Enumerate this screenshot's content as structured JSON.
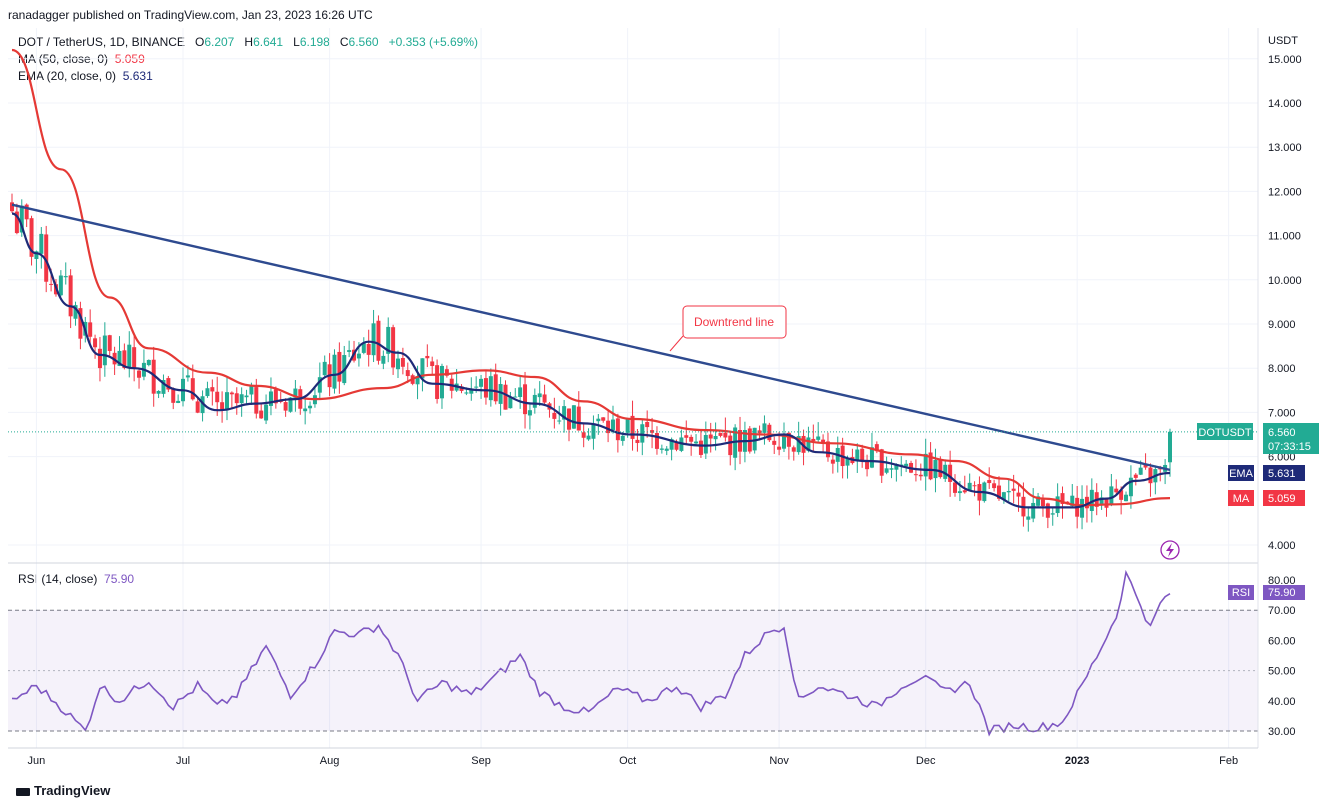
{
  "publisher": "ranadagger published on TradingView.com, Jan 23, 2023 16:26 UTC",
  "header": {
    "symbol": "DOT / TetherUS, 1D, BINANCE",
    "o_label": "O",
    "o": "6.207",
    "h_label": "H",
    "h": "6.641",
    "l_label": "L",
    "l": "6.198",
    "c_label": "C",
    "c": "6.560",
    "change": "+0.353 (+5.69%)",
    "ma_label": "MA (50, close, 0)",
    "ma_value": "5.059",
    "ema_label": "EMA (20, close, 0)",
    "ema_value": "5.631"
  },
  "rsi_header": {
    "label": "RSI (14, close)",
    "value": "75.90"
  },
  "badges": {
    "price_name": "DOTUSDT",
    "price": "6.560",
    "countdown": "07:33:15",
    "ema_name": "EMA",
    "ema": "5.631",
    "ma_name": "MA",
    "ma": "5.059",
    "rsi_name": "RSI",
    "rsi": "75.90"
  },
  "annotation": "Downtrend line",
  "brand": "TradingView",
  "colors": {
    "up": "#22ab94",
    "down": "#f23645",
    "ema": "#1e2a78",
    "ma": "#e53935",
    "trend": "#2e4a8f",
    "rsi": "#7e57c2"
  },
  "chart_data": [
    {
      "type": "candlestick",
      "ylabel": "USDT",
      "y_ticks": [
        "15.000",
        "14.000",
        "13.000",
        "12.000",
        "11.000",
        "10.000",
        "9.000",
        "8.000",
        "7.000",
        "6.000",
        "4.000"
      ],
      "x_ticks": [
        "Jun",
        "Jul",
        "Aug",
        "Sep",
        "Oct",
        "Nov",
        "Dec",
        "2023",
        "Feb"
      ],
      "ylim": [
        3.6,
        15.5
      ],
      "last_close": 6.56,
      "series": [
        {
          "name": "MA (50, close, 0)",
          "last": 5.059,
          "points": [
            [
              "May 31",
              15.2
            ],
            [
              "Jun 10",
              12.5
            ],
            [
              "Jun 20",
              9.6
            ],
            [
              "Jun 28",
              8.45
            ],
            [
              "Jul 10",
              7.9
            ],
            [
              "Jul 20",
              7.6
            ],
            [
              "Aug 1",
              7.3
            ],
            [
              "Aug 15",
              7.55
            ],
            [
              "Aug 25",
              7.85
            ],
            [
              "Sep 5",
              7.95
            ],
            [
              "Sep 15",
              7.8
            ],
            [
              "Sep 25",
              7.25
            ],
            [
              "Oct 5",
              6.85
            ],
            [
              "Oct 20",
              6.6
            ],
            [
              "Nov 1",
              6.5
            ],
            [
              "Nov 15",
              6.3
            ],
            [
              "Dec 1",
              6.05
            ],
            [
              "Dec 10",
              5.9
            ],
            [
              "Dec 20",
              5.5
            ],
            [
              "Dec 28",
              5.05
            ],
            [
              "Jan 5",
              4.9
            ],
            [
              "Jan 12",
              4.92
            ],
            [
              "Jan 23",
              5.06
            ]
          ]
        },
        {
          "name": "EMA (20, close, 0)",
          "last": 5.631,
          "points": [
            [
              "May 31",
              11.5
            ],
            [
              "Jun 5",
              10.6
            ],
            [
              "Jun 12",
              9.4
            ],
            [
              "Jun 18",
              8.3
            ],
            [
              "Jun 25",
              8.0
            ],
            [
              "Jul 5",
              7.5
            ],
            [
              "Jul 12",
              7.05
            ],
            [
              "Jul 20",
              7.2
            ],
            [
              "Jul 28",
              7.3
            ],
            [
              "Aug 5",
              7.85
            ],
            [
              "Aug 12",
              8.6
            ],
            [
              "Aug 18",
              8.35
            ],
            [
              "Aug 25",
              7.65
            ],
            [
              "Sep 5",
              7.5
            ],
            [
              "Sep 15",
              7.2
            ],
            [
              "Sep 25",
              6.75
            ],
            [
              "Oct 5",
              6.5
            ],
            [
              "Oct 20",
              6.25
            ],
            [
              "Oct 28",
              6.35
            ],
            [
              "Nov 5",
              6.5
            ],
            [
              "Nov 12",
              6.1
            ],
            [
              "Nov 22",
              5.9
            ],
            [
              "Dec 5",
              5.7
            ],
            [
              "Dec 15",
              5.2
            ],
            [
              "Dec 25",
              4.85
            ],
            [
              "Jan 3",
              4.85
            ],
            [
              "Jan 10",
              5.05
            ],
            [
              "Jan 16",
              5.45
            ],
            [
              "Jan 23",
              5.63
            ]
          ]
        },
        {
          "name": "Downtrend line",
          "points": [
            [
              "May 31",
              11.7
            ],
            [
              "Jan 23",
              5.7
            ]
          ]
        }
      ]
    },
    {
      "type": "line",
      "title": "RSI (14, close)",
      "y_ticks": [
        "80.00",
        "70.00",
        "60.00",
        "50.00",
        "40.00",
        "30.00"
      ],
      "ylim": [
        27,
        84
      ],
      "bands": [
        30,
        70
      ],
      "series": [
        {
          "name": "RSI (14, close)",
          "last": 75.9,
          "points": [
            [
              "May 31",
              40
            ],
            [
              "Jun 5",
              45
            ],
            [
              "Jun 10",
              38
            ],
            [
              "Jun 15",
              30
            ],
            [
              "Jun 18",
              45
            ],
            [
              "Jun 22",
              40
            ],
            [
              "Jun 28",
              47
            ],
            [
              "Jul 3",
              38
            ],
            [
              "Jul 8",
              45
            ],
            [
              "Jul 12",
              38
            ],
            [
              "Jul 16",
              42
            ],
            [
              "Jul 22",
              58
            ],
            [
              "Jul 27",
              42
            ],
            [
              "Aug 1",
              52
            ],
            [
              "Aug 5",
              63
            ],
            [
              "Aug 10",
              62
            ],
            [
              "Aug 14",
              65
            ],
            [
              "Aug 18",
              55
            ],
            [
              "Aug 22",
              40
            ],
            [
              "Aug 27",
              46
            ],
            [
              "Sep 2",
              42
            ],
            [
              "Sep 7",
              48
            ],
            [
              "Sep 12",
              55
            ],
            [
              "Sep 16",
              43
            ],
            [
              "Sep 21",
              38
            ],
            [
              "Sep 26",
              36
            ],
            [
              "Oct 2",
              44
            ],
            [
              "Oct 8",
              40
            ],
            [
              "Oct 14",
              45
            ],
            [
              "Oct 19",
              38
            ],
            [
              "Oct 24",
              42
            ],
            [
              "Oct 28",
              55
            ],
            [
              "Nov 2",
              63
            ],
            [
              "Nov 5",
              65
            ],
            [
              "Nov 8",
              40
            ],
            [
              "Nov 12",
              45
            ],
            [
              "Nov 18",
              42
            ],
            [
              "Nov 24",
              38
            ],
            [
              "Nov 29",
              45
            ],
            [
              "Dec 3",
              48
            ],
            [
              "Dec 8",
              43
            ],
            [
              "Dec 13",
              46
            ],
            [
              "Dec 17",
              30
            ],
            [
              "Dec 22",
              32
            ],
            [
              "Dec 27",
              31
            ],
            [
              "Jan 1",
              33
            ],
            [
              "Jan 5",
              45
            ],
            [
              "Jan 9",
              58
            ],
            [
              "Jan 12",
              68
            ],
            [
              "Jan 14",
              82
            ],
            [
              "Jan 17",
              72
            ],
            [
              "Jan 19",
              64
            ],
            [
              "Jan 21",
              72
            ],
            [
              "Jan 23",
              75.9
            ]
          ]
        }
      ]
    }
  ]
}
